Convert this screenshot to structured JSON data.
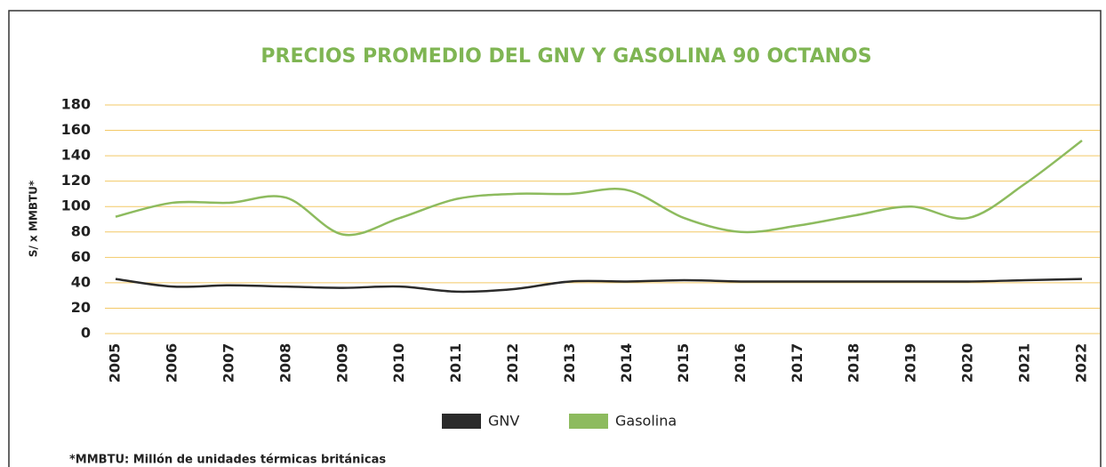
{
  "chart_data": {
    "type": "line",
    "title": "PRECIOS PROMEDIO DEL GNV Y GASOLINA 90 OCTANOS",
    "y_label": "S/ x MMBTU*",
    "footnote": "*MMBTU: Millón de unidades térmicas británicas",
    "categories": [
      "2005",
      "2006",
      "2007",
      "2008",
      "2009",
      "2010",
      "2011",
      "2012",
      "2013",
      "2014",
      "2015",
      "2016",
      "2017",
      "2018",
      "2019",
      "2020",
      "2021",
      "2022"
    ],
    "series": [
      {
        "name": "GNV",
        "color": "#2b2b2b",
        "values": [
          43,
          37,
          38,
          37,
          36,
          37,
          33,
          35,
          41,
          41,
          42,
          41,
          41,
          41,
          41,
          41,
          42,
          43
        ]
      },
      {
        "name": "Gasolina",
        "color": "#8dbb5e",
        "values": [
          92,
          103,
          103,
          107,
          78,
          91,
          106,
          110,
          110,
          113,
          91,
          80,
          85,
          93,
          100,
          91,
          118,
          152
        ]
      }
    ],
    "ylim": [
      0,
      180
    ],
    "yticks": [
      0,
      20,
      40,
      60,
      80,
      100,
      120,
      140,
      160,
      180
    ],
    "grid": true
  }
}
